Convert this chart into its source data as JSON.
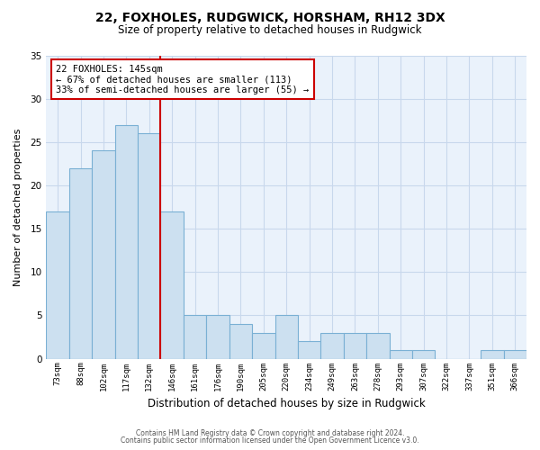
{
  "title": "22, FOXHOLES, RUDGWICK, HORSHAM, RH12 3DX",
  "subtitle": "Size of property relative to detached houses in Rudgwick",
  "xlabel": "Distribution of detached houses by size in Rudgwick",
  "ylabel": "Number of detached properties",
  "bar_labels": [
    "73sqm",
    "88sqm",
    "102sqm",
    "117sqm",
    "132sqm",
    "146sqm",
    "161sqm",
    "176sqm",
    "190sqm",
    "205sqm",
    "220sqm",
    "234sqm",
    "249sqm",
    "263sqm",
    "278sqm",
    "293sqm",
    "307sqm",
    "322sqm",
    "337sqm",
    "351sqm",
    "366sqm"
  ],
  "bar_heights": [
    17,
    22,
    24,
    27,
    26,
    17,
    5,
    5,
    4,
    3,
    5,
    2,
    3,
    3,
    3,
    1,
    1,
    0,
    0,
    1,
    1
  ],
  "bar_color": "#cce0f0",
  "bar_edge_color": "#7ab0d4",
  "marker_index": 5,
  "marker_label": "146sqm",
  "marker_line_color": "#cc0000",
  "annotation_title": "22 FOXHOLES: 145sqm",
  "annotation_line1": "← 67% of detached houses are smaller (113)",
  "annotation_line2": "33% of semi-detached houses are larger (55) →",
  "annotation_box_color": "#ffffff",
  "annotation_box_edge": "#cc0000",
  "ylim": [
    0,
    35
  ],
  "yticks": [
    0,
    5,
    10,
    15,
    20,
    25,
    30,
    35
  ],
  "footer1": "Contains HM Land Registry data © Crown copyright and database right 2024.",
  "footer2": "Contains public sector information licensed under the Open Government Licence v3.0.",
  "background_color": "#ffffff",
  "grid_color": "#c8d8ec",
  "plot_bg_color": "#eaf2fb"
}
